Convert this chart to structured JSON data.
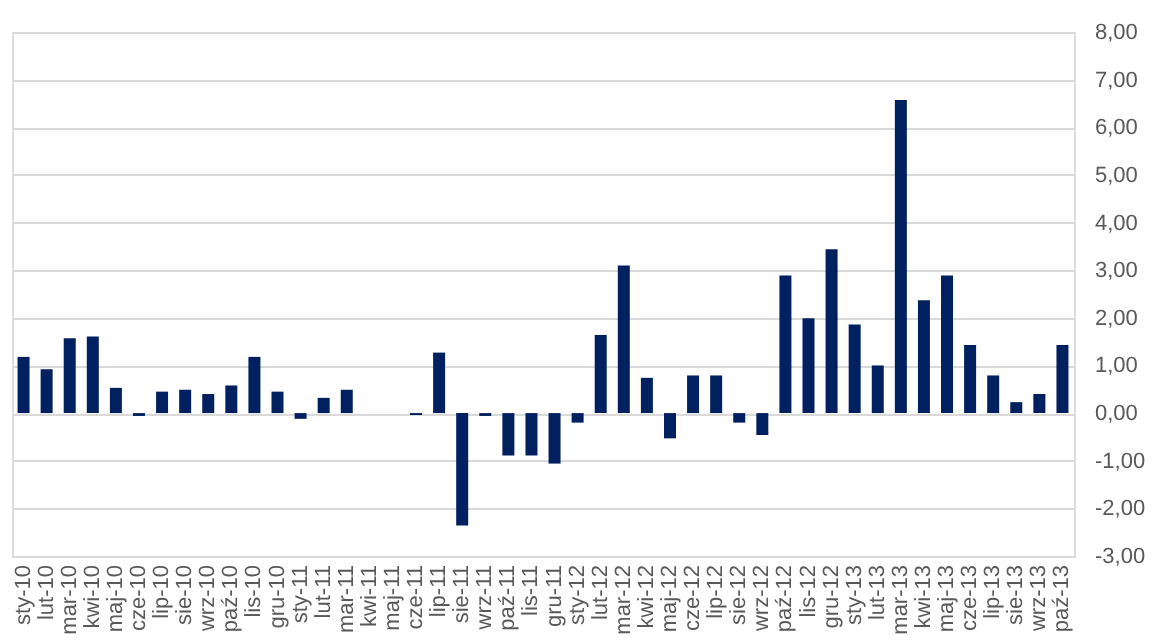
{
  "chart_data": {
    "type": "bar",
    "categories": [
      "sty-10",
      "lut-10",
      "mar-10",
      "kwi-10",
      "maj-10",
      "cze-10",
      "lip-10",
      "sie-10",
      "wrz-10",
      "paź-10",
      "lis-10",
      "gru-10",
      "sty-11",
      "lut-11",
      "mar-11",
      "kwi-11",
      "maj-11",
      "cze-11",
      "lip-11",
      "sie-11",
      "wrz-11",
      "paź-11",
      "lis-11",
      "gru-11",
      "sty-12",
      "lut-12",
      "mar-12",
      "kwi-12",
      "maj-12",
      "cze-12",
      "lip-12",
      "sie-12",
      "wrz-12",
      "paź-12",
      "lis-12",
      "gru-12",
      "sty-13",
      "lut-13",
      "mar-13",
      "kwi-13",
      "maj-13",
      "cze-13",
      "lip-13",
      "sie-13",
      "wrz-13",
      "paź-13"
    ],
    "values": [
      1.18,
      0.92,
      1.57,
      1.61,
      0.53,
      -0.06,
      0.45,
      0.49,
      0.4,
      0.58,
      1.18,
      0.45,
      -0.12,
      0.32,
      0.49,
      0,
      0,
      -0.04,
      1.27,
      -2.36,
      -0.06,
      -0.89,
      -0.89,
      -1.06,
      -0.2,
      1.64,
      3.1,
      0.74,
      -0.53,
      0.79,
      0.79,
      -0.2,
      -0.46,
      2.89,
      1.99,
      3.44,
      1.86,
      1.0,
      6.57,
      2.37,
      2.89,
      1.43,
      0.79,
      0.23,
      0.4,
      1.43
    ],
    "color": "#002060",
    "ylim": [
      -3,
      8
    ],
    "yticks": [
      {
        "value": -3,
        "label": "-3,00"
      },
      {
        "value": -2,
        "label": "-2,00"
      },
      {
        "value": -1,
        "label": "-1,00"
      },
      {
        "value": 0,
        "label": "0,00"
      },
      {
        "value": 1,
        "label": "1,00"
      },
      {
        "value": 2,
        "label": "2,00"
      },
      {
        "value": 3,
        "label": "3,00"
      },
      {
        "value": 4,
        "label": "4,00"
      },
      {
        "value": 5,
        "label": "5,00"
      },
      {
        "value": 6,
        "label": "6,00"
      },
      {
        "value": 7,
        "label": "7,00"
      },
      {
        "value": 8,
        "label": "8,00"
      }
    ],
    "grid": "y"
  }
}
